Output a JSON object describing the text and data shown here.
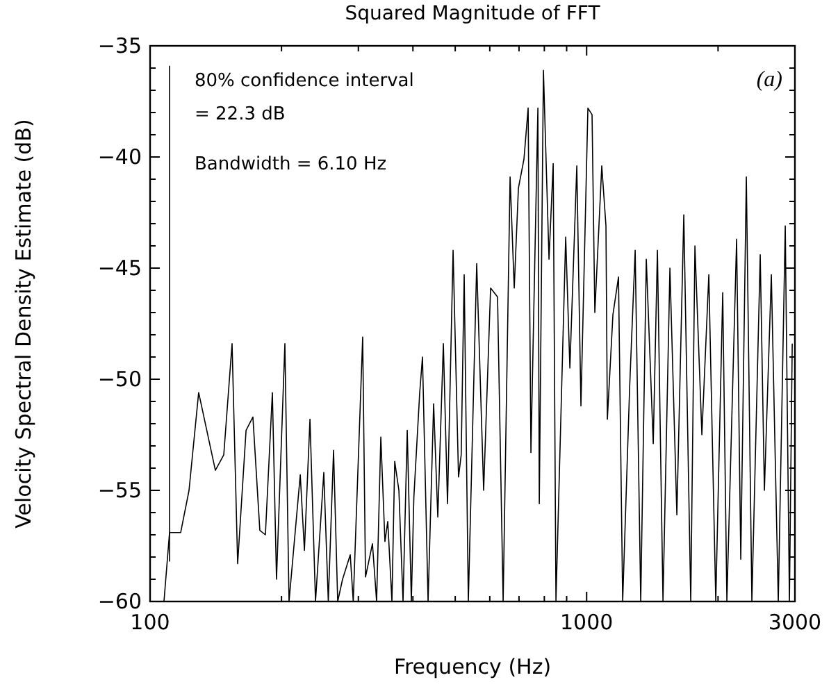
{
  "chart_data": {
    "type": "line",
    "title": "Squared Magnitude of FFT",
    "xlabel": "Frequency (Hz)",
    "ylabel": "Velocity Spectral Density Estimate (dB)",
    "annotations": [
      "80% confidence interval",
      "= 22.3 dB",
      "Bandwidth = 6.10 Hz",
      "(a)"
    ],
    "log": "x",
    "xlim": [
      100,
      3000
    ],
    "ylim": [
      -60,
      -35
    ],
    "xticks": [
      100,
      {
        "value": 200,
        "label": null
      },
      {
        "value": 300,
        "label": null
      },
      {
        "value": 400,
        "label": null
      },
      {
        "value": 500,
        "label": null
      },
      {
        "value": 600,
        "label": null
      },
      {
        "value": 700,
        "label": null
      },
      {
        "value": 800,
        "label": null
      },
      {
        "value": 900,
        "label": null
      },
      1000,
      {
        "value": 2000,
        "label": null
      },
      3000
    ],
    "yticks": [
      -60,
      {
        "value": -59,
        "label": null
      },
      {
        "value": -58,
        "label": null
      },
      {
        "value": -57,
        "label": null
      },
      {
        "value": -56,
        "label": null
      },
      -55,
      {
        "value": -54,
        "label": null
      },
      {
        "value": -53,
        "label": null
      },
      {
        "value": -52,
        "label": null
      },
      {
        "value": -51,
        "label": null
      },
      -50,
      {
        "value": -49,
        "label": null
      },
      {
        "value": -48,
        "label": null
      },
      {
        "value": -47,
        "label": null
      },
      {
        "value": -46,
        "label": null
      },
      -45,
      {
        "value": -44,
        "label": null
      },
      {
        "value": -43,
        "label": null
      },
      {
        "value": -42,
        "label": null
      },
      {
        "value": -41,
        "label": null
      },
      -40,
      {
        "value": -39,
        "label": null
      },
      {
        "value": -38,
        "label": null
      },
      {
        "value": -37,
        "label": null
      },
      {
        "value": -36,
        "label": null
      },
      -35
    ],
    "series": [
      {
        "color": "#000000",
        "x": [
          107.6,
          110.8,
          117.5,
          122.8,
          129.2,
          141.1,
          147.5,
          154.1,
          158.7,
          165.9,
          172,
          178.4,
          183.7,
          190.6,
          194.8,
          203.6,
          208.1,
          220.8,
          225.7,
          232.4,
          239.3,
          250,
          256,
          263.2,
          269,
          276,
          287.4,
          292,
          306.9,
          311.5,
          323.1,
          330.3,
          337.7,
          345.1,
          350.3,
          358.1,
          363.4,
          371.5,
          379.7,
          388.2,
          396.7,
          402,
          414.6,
          420.7,
          433.3,
          446.2,
          456.1,
          469.7,
          480.1,
          494.4,
          508.8,
          516,
          524.2,
          535.8,
          560,
          580.9,
          602.6,
          625.1,
          643.8,
          667.8,
          682.6,
          697.8,
          718.5,
          734.5,
          745.4,
          773.3,
          779,
          796.2,
          820,
          838.3,
          850.6,
          895.4,
          915.4,
          949.5,
          970.4,
          1006.7,
          1029,
          1044.2,
          1083.1,
          1107.3,
          1115.5,
          1148.7,
          1183,
          1209.4,
          1254.5,
          1291.8,
          1330.2,
          1369.8,
          1421,
          1452.5,
          1495.9,
          1551.6,
          1609.5,
          1669.5,
          1731.9,
          1770.4,
          1836.5,
          1905,
          1976.2,
          2050,
          2095.4,
          2205.7,
          2254.8,
          2321.8,
          2390.7,
          2498.3,
          2553.9,
          2649.2,
          2748,
          2851,
          2914.3,
          2957.6
        ],
        "values": [
          -60,
          -56.9,
          -56.9,
          -55,
          -50.6,
          -54.1,
          -53.4,
          -48.4,
          -58.3,
          -52.3,
          -51.7,
          -56.8,
          -57,
          -50.6,
          -59,
          -48.4,
          -60,
          -54.3,
          -57.7,
          -51.8,
          -60,
          -54.2,
          -60,
          -53.2,
          -60,
          -59,
          -57.9,
          -60,
          -48.1,
          -58.9,
          -57.4,
          -60,
          -52.6,
          -57.3,
          -56.4,
          -60,
          -53.7,
          -55,
          -60,
          -52.3,
          -60,
          -55.3,
          -50.6,
          -49,
          -60,
          -51.1,
          -56.2,
          -48.4,
          -55.6,
          -44.2,
          -54.4,
          -53.4,
          -45.3,
          -60,
          -44.8,
          -55,
          -45.9,
          -46.3,
          -60,
          -40.9,
          -45.9,
          -41.4,
          -40.1,
          -37.8,
          -53.3,
          -37.8,
          -55.6,
          -36.1,
          -44.6,
          -40.3,
          -60,
          -43.6,
          -49.5,
          -40.4,
          -51.2,
          -37.8,
          -38.1,
          -47,
          -40.4,
          -43.1,
          -51.8,
          -47.1,
          -45.4,
          -60,
          -50.4,
          -44.2,
          -60,
          -44.6,
          -52.9,
          -44.2,
          -60,
          -45,
          -56.1,
          -42.6,
          -60,
          -44,
          -52.5,
          -45.3,
          -60,
          -46.1,
          -60,
          -43.7,
          -58.1,
          -40.9,
          -60,
          -44.4,
          -55,
          -45.3,
          -60,
          -43.1,
          -60,
          -48.4
        ]
      },
      {
        "type": "line",
        "color": "#000000",
        "x": [
          110.8,
          110.8
        ],
        "values": [
          -35.9,
          -58.2
        ]
      }
    ]
  }
}
